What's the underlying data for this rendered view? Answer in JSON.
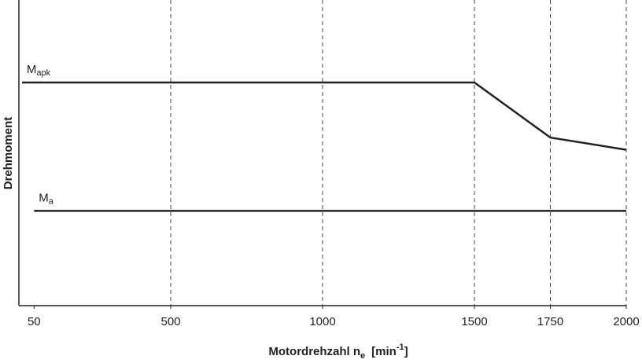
{
  "chart_data": {
    "type": "line",
    "x_label": [
      "Motordrehzahl n",
      "e",
      "[min",
      "-1",
      "]"
    ],
    "y_label": "Drehmoment",
    "xlim": [
      0,
      2000
    ],
    "xticks": [
      50,
      500,
      1000,
      1500,
      1750,
      2000
    ],
    "xgrid": [
      500,
      1000,
      1500,
      1750,
      2000
    ],
    "ylim": [
      0,
      100
    ],
    "series": [
      {
        "name": "M",
        "name_sub": "apk",
        "color": "#222222",
        "x": [
          10,
          1500,
          1750,
          2000
        ],
        "values": [
          73,
          73,
          55,
          51
        ]
      },
      {
        "name": "M",
        "name_sub": "a",
        "color": "#222222",
        "x": [
          50,
          2000
        ],
        "values": [
          31,
          31
        ]
      }
    ]
  }
}
